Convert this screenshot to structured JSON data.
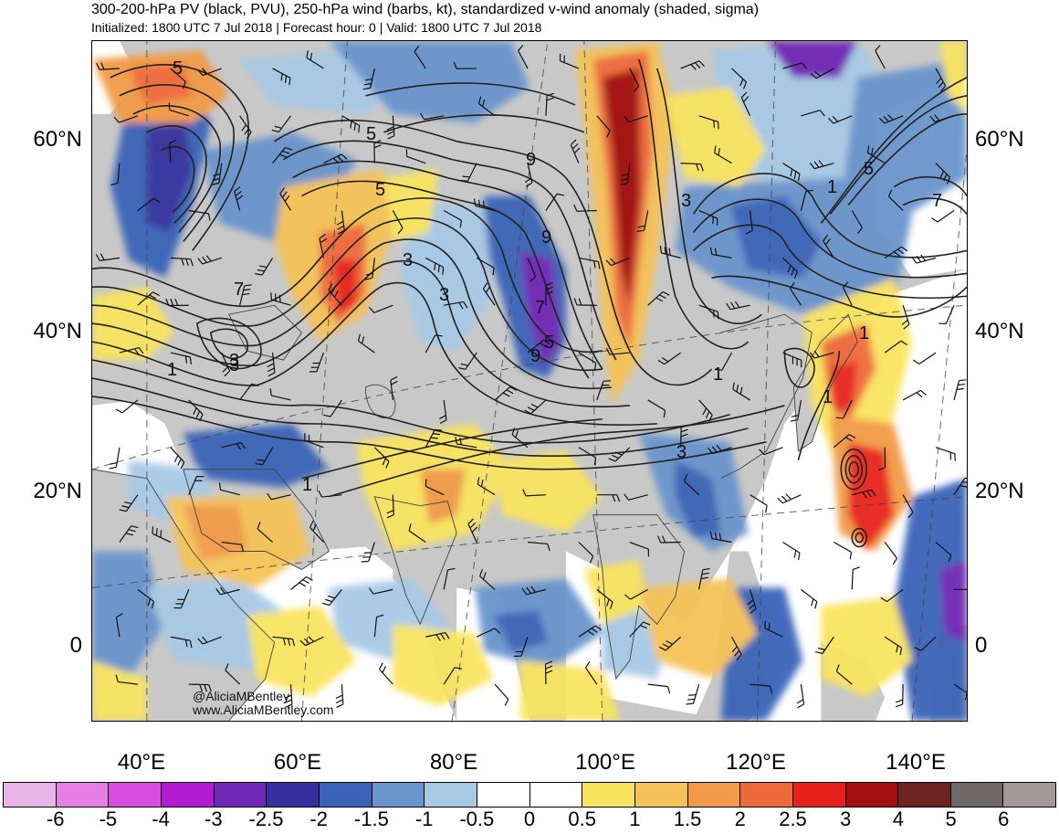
{
  "header": {
    "title": "300-200-hPa PV (black, PVU), 250-hPa wind (barbs, kt), standardized v-wind anomaly (shaded, sigma)",
    "subtitle": "Initialized: 1800 UTC 7 Jul 2018 | Forecast hour: 0 | Valid: 1800 UTC 7 Jul 2018"
  },
  "map": {
    "lat_labels": [
      "60°N",
      "40°N",
      "20°N",
      "0"
    ],
    "lon_labels": [
      "40°E",
      "60°E",
      "80°E",
      "100°E",
      "120°E",
      "140°E"
    ],
    "contour_labels": [
      "5",
      "5",
      "5",
      "9",
      "9",
      "9",
      "3",
      "3",
      "3",
      "7",
      "7",
      "5",
      "3",
      "1",
      "3",
      "1",
      "1",
      "1",
      "1",
      "5",
      "7",
      "1",
      "3"
    ],
    "credit": {
      "handle": "@AliciaMBentley",
      "site": "www.AliciaMBentley.com"
    },
    "colors": {
      "land": "#c8c8c8",
      "contour": "#222222",
      "border": "#555555"
    }
  },
  "colorbar": {
    "colors": [
      "#e9b5e6",
      "#e57fe6",
      "#d94ee0",
      "#b31bd1",
      "#6f27b5",
      "#36309e",
      "#3a63b8",
      "#6a94cc",
      "#a8c9e6",
      "#ffffff",
      "#ffffff",
      "#f9e45f",
      "#f5c259",
      "#f29a47",
      "#ef6a3a",
      "#e8201b",
      "#a30e0e",
      "#6e2323",
      "#6e6868",
      "#a49999"
    ],
    "labels": [
      "-6",
      "-5",
      "-4",
      "-3",
      "-2.5",
      "-2",
      "-1.5",
      "-1",
      "-0.5",
      "0",
      "0.5",
      "1",
      "1.5",
      "2",
      "2.5",
      "3",
      "4",
      "5",
      "6"
    ]
  }
}
